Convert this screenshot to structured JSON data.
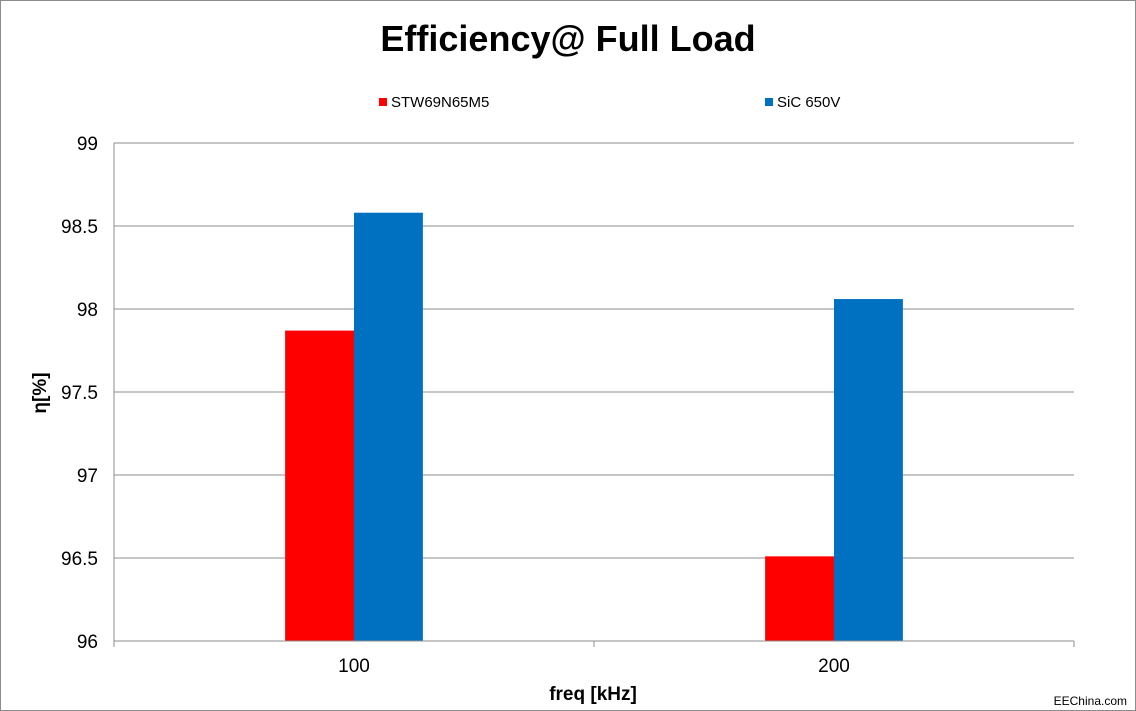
{
  "chart_data": {
    "type": "bar",
    "title": "Efficiency@ Full Load",
    "xlabel": "freq [kHz]",
    "ylabel": "η[%]",
    "categories": [
      "100",
      "200"
    ],
    "series": [
      {
        "name": "STW69N65M5",
        "color": "#ff0000",
        "values": [
          97.87,
          96.51
        ]
      },
      {
        "name": "SiC 650V",
        "color": "#0070c0",
        "values": [
          98.58,
          98.06
        ]
      }
    ],
    "ylim": [
      96,
      99
    ],
    "yticks": [
      "96",
      "96.5",
      "97",
      "97.5",
      "98",
      "98.5",
      "99"
    ],
    "grid": true,
    "legend": "top"
  },
  "watermark": "EEChina.com"
}
